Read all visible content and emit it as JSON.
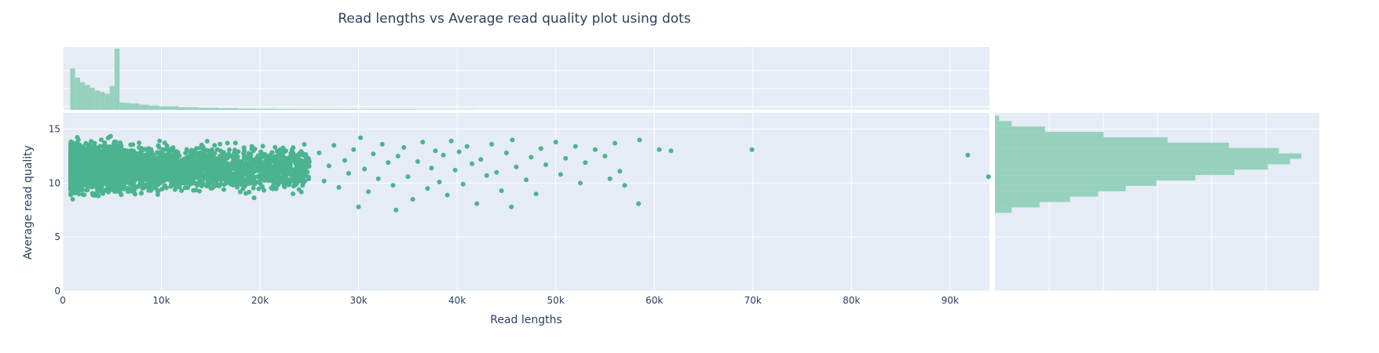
{
  "chart_data": {
    "type": "scatter",
    "title": "Read lengths vs Average read quality plot using dots",
    "xlabel": "Read lengths",
    "ylabel": "Average read quality",
    "xlim": [
      0,
      94000
    ],
    "ylim": [
      0,
      16.5
    ],
    "x_ticks": [
      {
        "value": 0,
        "label": "0"
      },
      {
        "value": 10000,
        "label": "10k"
      },
      {
        "value": 20000,
        "label": "20k"
      },
      {
        "value": 30000,
        "label": "30k"
      },
      {
        "value": 40000,
        "label": "40k"
      },
      {
        "value": 50000,
        "label": "50k"
      },
      {
        "value": 60000,
        "label": "60k"
      },
      {
        "value": 70000,
        "label": "70k"
      },
      {
        "value": 80000,
        "label": "80k"
      },
      {
        "value": 90000,
        "label": "90k"
      }
    ],
    "y_ticks": [
      {
        "value": 0,
        "label": "0"
      },
      {
        "value": 5,
        "label": "5"
      },
      {
        "value": 10,
        "label": "10"
      },
      {
        "value": 15,
        "label": "15"
      }
    ],
    "grid": true,
    "marker_color": "#4bb38f",
    "histogram_color": "#96d1bd",
    "plot_background": "#e5ecf6",
    "dense_region": {
      "x_range": [
        800,
        25000
      ],
      "y_range": [
        7.3,
        15.6
      ],
      "peak_x": 5500
    },
    "outliers": [
      [
        26000,
        12.8
      ],
      [
        26500,
        10.2
      ],
      [
        27000,
        11.6
      ],
      [
        27500,
        13.5
      ],
      [
        28000,
        9.6
      ],
      [
        28600,
        12.1
      ],
      [
        29000,
        10.9
      ],
      [
        29500,
        13.1
      ],
      [
        30000,
        7.8
      ],
      [
        30200,
        14.2
      ],
      [
        30600,
        11.3
      ],
      [
        31000,
        9.2
      ],
      [
        31500,
        12.7
      ],
      [
        32000,
        10.4
      ],
      [
        32400,
        13.6
      ],
      [
        33000,
        11.9
      ],
      [
        33500,
        9.8
      ],
      [
        33800,
        7.5
      ],
      [
        34000,
        12.5
      ],
      [
        34600,
        13.3
      ],
      [
        35000,
        10.6
      ],
      [
        35500,
        8.5
      ],
      [
        36000,
        12.0
      ],
      [
        36500,
        13.8
      ],
      [
        37000,
        9.5
      ],
      [
        37400,
        11.4
      ],
      [
        37800,
        13.0
      ],
      [
        38200,
        10.1
      ],
      [
        38600,
        12.6
      ],
      [
        39000,
        8.9
      ],
      [
        39400,
        13.9
      ],
      [
        39800,
        11.2
      ],
      [
        40200,
        12.9
      ],
      [
        40600,
        9.9
      ],
      [
        41000,
        13.4
      ],
      [
        41500,
        11.8
      ],
      [
        42000,
        8.1
      ],
      [
        42400,
        12.2
      ],
      [
        43000,
        10.7
      ],
      [
        43500,
        13.6
      ],
      [
        44000,
        11.0
      ],
      [
        44500,
        9.3
      ],
      [
        45000,
        12.8
      ],
      [
        45500,
        7.8
      ],
      [
        45600,
        14.0
      ],
      [
        46000,
        11.5
      ],
      [
        47000,
        10.3
      ],
      [
        47500,
        12.4
      ],
      [
        48000,
        9.0
      ],
      [
        48500,
        13.2
      ],
      [
        49000,
        11.7
      ],
      [
        50000,
        13.8
      ],
      [
        50500,
        10.8
      ],
      [
        51000,
        12.3
      ],
      [
        52000,
        13.4
      ],
      [
        52500,
        10.0
      ],
      [
        53000,
        11.9
      ],
      [
        54000,
        13.1
      ],
      [
        55000,
        12.5
      ],
      [
        55500,
        10.4
      ],
      [
        56000,
        13.7
      ],
      [
        56500,
        11.1
      ],
      [
        57000,
        9.8
      ],
      [
        58400,
        8.1
      ],
      [
        58500,
        14.0
      ],
      [
        60500,
        13.1
      ],
      [
        61700,
        13.0
      ],
      [
        69900,
        13.1
      ],
      [
        91800,
        12.6
      ],
      [
        93900,
        10.6
      ]
    ],
    "x_histogram": [
      {
        "x": 1000,
        "count": 900
      },
      {
        "x": 1500,
        "count": 700
      },
      {
        "x": 2000,
        "count": 600
      },
      {
        "x": 2500,
        "count": 540
      },
      {
        "x": 3000,
        "count": 480
      },
      {
        "x": 3500,
        "count": 420
      },
      {
        "x": 4000,
        "count": 390
      },
      {
        "x": 4500,
        "count": 350
      },
      {
        "x": 5000,
        "count": 520
      },
      {
        "x": 5500,
        "count": 1330
      },
      {
        "x": 6000,
        "count": 160
      },
      {
        "x": 6500,
        "count": 150
      },
      {
        "x": 7000,
        "count": 140
      },
      {
        "x": 8000,
        "count": 110
      },
      {
        "x": 9000,
        "count": 90
      },
      {
        "x": 10000,
        "count": 75
      },
      {
        "x": 12000,
        "count": 60
      },
      {
        "x": 14000,
        "count": 45
      },
      {
        "x": 16000,
        "count": 35
      },
      {
        "x": 18000,
        "count": 25
      },
      {
        "x": 20000,
        "count": 20
      },
      {
        "x": 22000,
        "count": 15
      },
      {
        "x": 24000,
        "count": 12
      },
      {
        "x": 26000,
        "count": 10
      },
      {
        "x": 28000,
        "count": 8
      },
      {
        "x": 30000,
        "count": 7
      },
      {
        "x": 33000,
        "count": 6
      },
      {
        "x": 36000,
        "count": 5
      },
      {
        "x": 39000,
        "count": 5
      }
    ],
    "y_histogram": [
      {
        "y": 7.5,
        "count": 60
      },
      {
        "y": 8.0,
        "count": 160
      },
      {
        "y": 8.5,
        "count": 270
      },
      {
        "y": 9.0,
        "count": 370
      },
      {
        "y": 9.5,
        "count": 470
      },
      {
        "y": 10.0,
        "count": 580
      },
      {
        "y": 10.5,
        "count": 720
      },
      {
        "y": 11.0,
        "count": 860
      },
      {
        "y": 11.5,
        "count": 980
      },
      {
        "y": 12.0,
        "count": 1060
      },
      {
        "y": 12.5,
        "count": 1100
      },
      {
        "y": 13.0,
        "count": 1020
      },
      {
        "y": 13.5,
        "count": 840
      },
      {
        "y": 14.0,
        "count": 620
      },
      {
        "y": 14.5,
        "count": 390
      },
      {
        "y": 15.0,
        "count": 180
      },
      {
        "y": 15.5,
        "count": 60
      },
      {
        "y": 16.0,
        "count": 15
      }
    ]
  }
}
